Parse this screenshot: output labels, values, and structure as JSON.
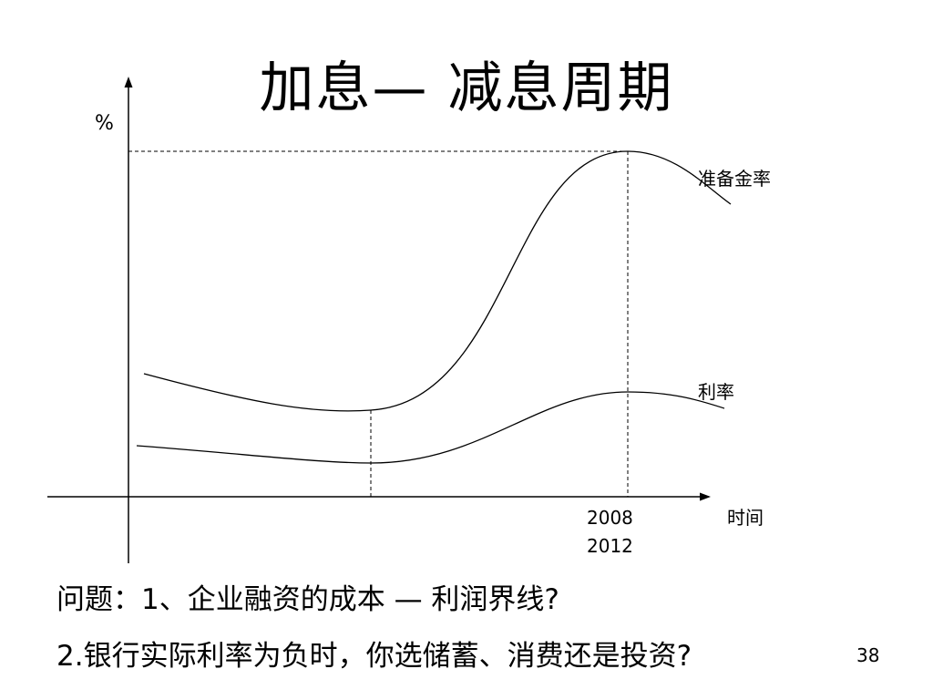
{
  "slide": {
    "title": "加息— 减息周期",
    "page_number": "38"
  },
  "diagram": {
    "y_axis_label": "%",
    "x_axis_label": "时间",
    "x_tick_labels": [
      "2008",
      "2012"
    ],
    "curves": [
      {
        "label": "准备金率"
      },
      {
        "label": "利率"
      }
    ]
  },
  "questions": {
    "q1": "问题：1、企业融资的成本 — 利润界线?",
    "q2": "2.银行实际利率为负时，你选储蓄、消费还是投资?"
  }
}
